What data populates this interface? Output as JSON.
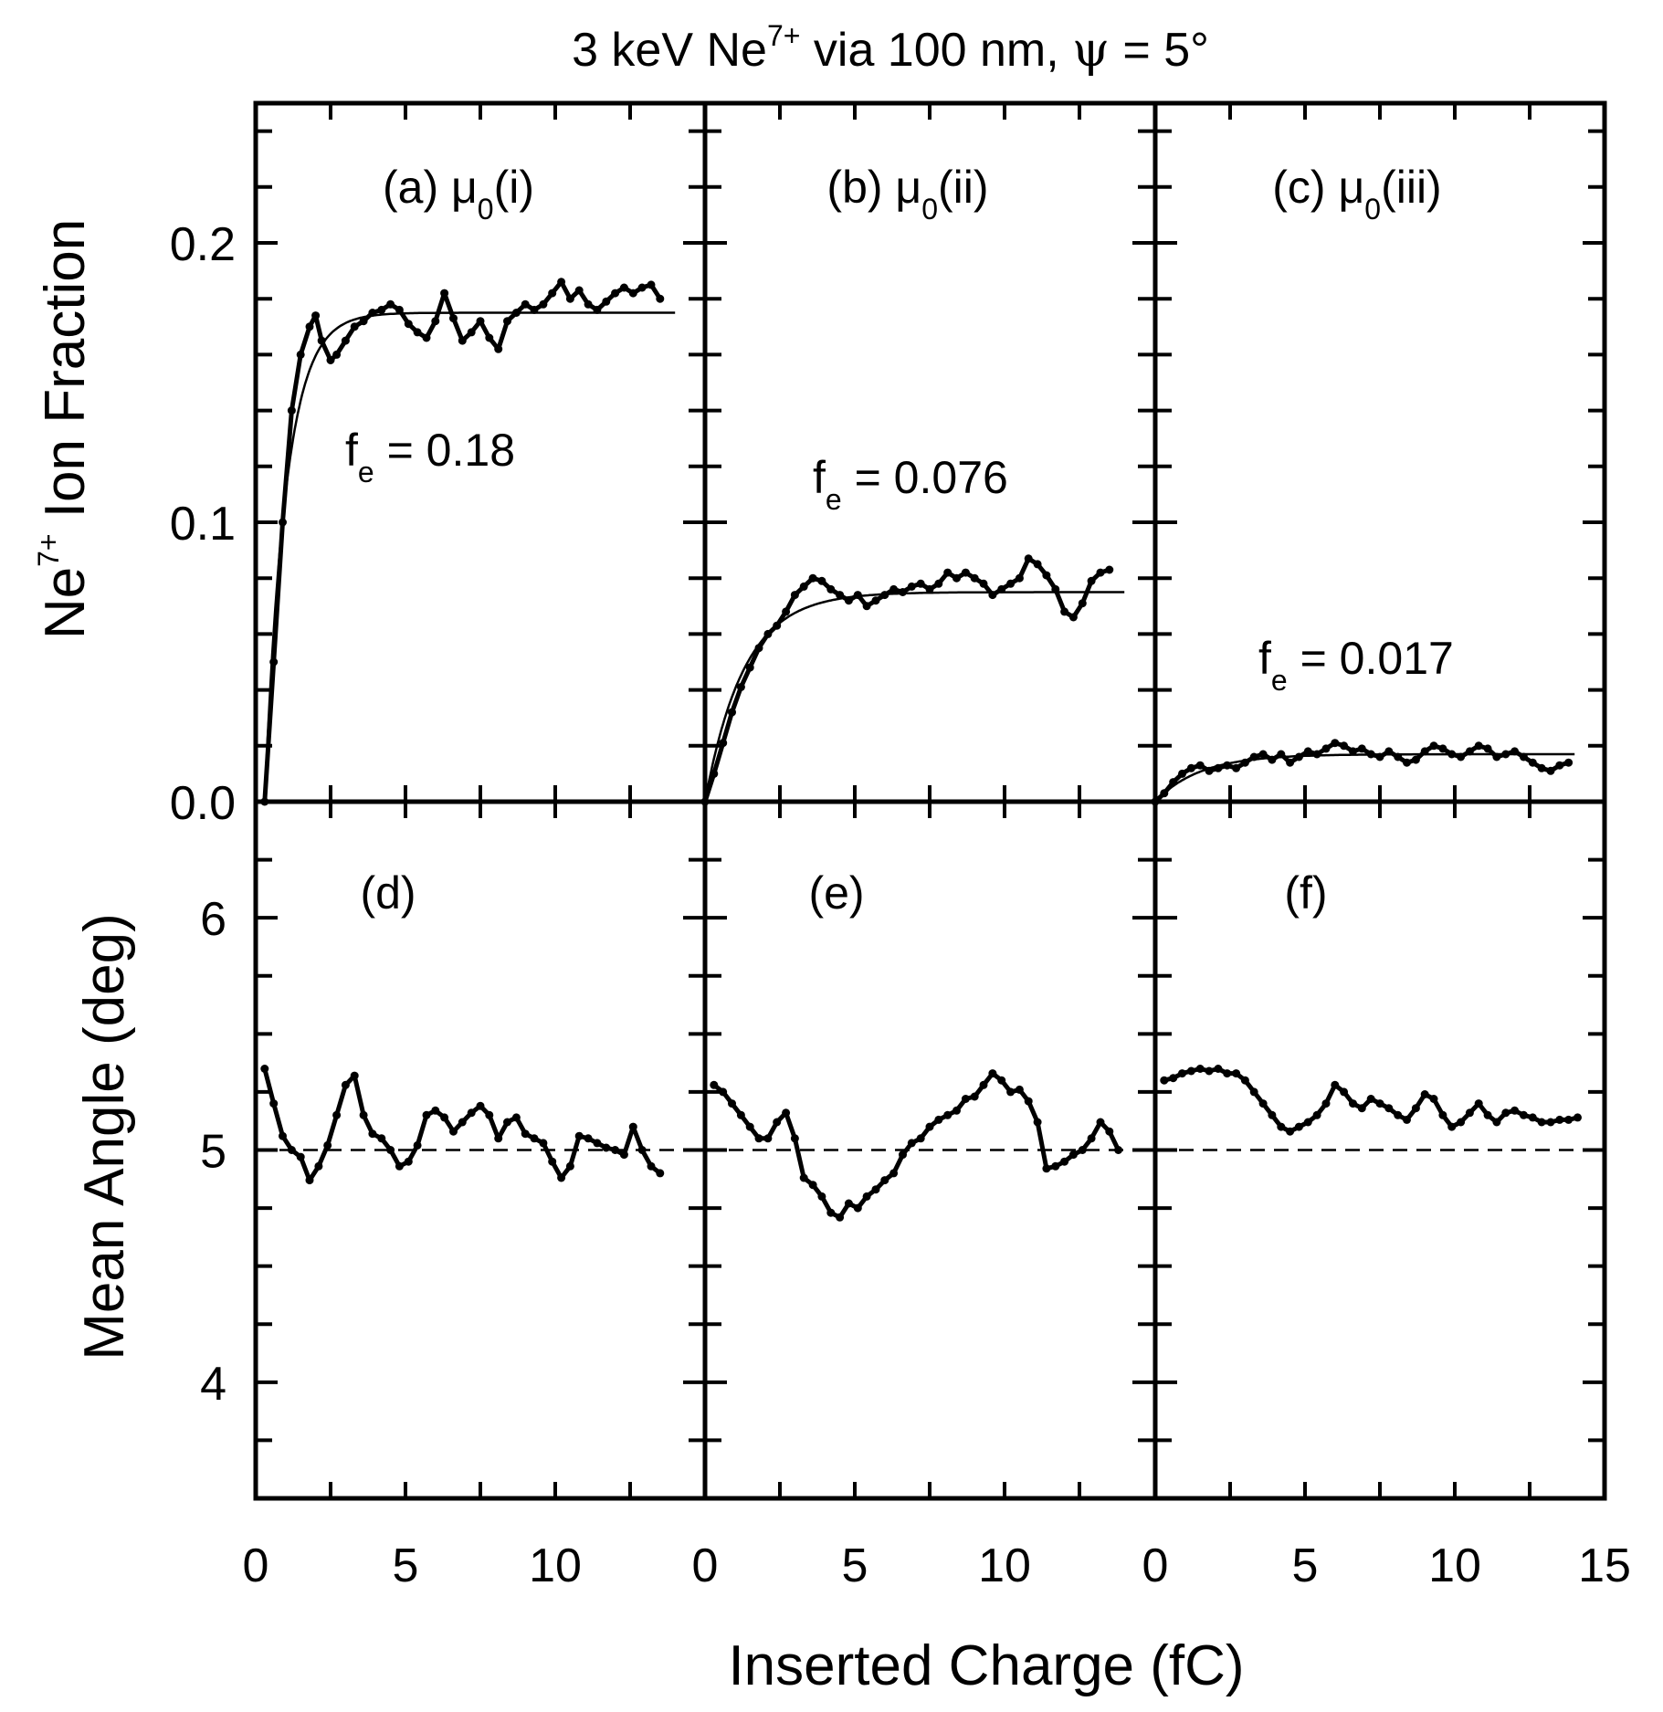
{
  "chart_data": {
    "type": "line",
    "title": {
      "prefix": "3 keV Ne",
      "sup": "7+",
      "middle": " via 100 nm, ",
      "psi": "ψ",
      "suffix": " = 5°"
    },
    "xlabel": "Inserted Charge (fC)",
    "ylabel_top": {
      "prefix": "Ne",
      "sup": "7+",
      "suffix": " Ion Fraction"
    },
    "ylabel_bottom": "Mean Angle (deg)",
    "xlim": [
      0,
      15
    ],
    "x_ticks": [
      "0",
      "5",
      "10",
      "15"
    ],
    "top_ylim": [
      0.0,
      0.25
    ],
    "top_y_ticks": [
      "0.0",
      "0.1",
      "0.2"
    ],
    "bottom_ylim": [
      3.5,
      6.5
    ],
    "bottom_y_ticks": [
      "4",
      "5",
      "6"
    ],
    "reference_angle": 5,
    "panels": [
      {
        "label": "(a) μ",
        "label_sub": "0",
        "label_tail": "(i)",
        "fe_label": "f",
        "fe_sub": "e",
        "fe_value": " = 0.18",
        "fraction": [
          [
            0.3,
            0.0
          ],
          [
            0.6,
            0.05
          ],
          [
            0.9,
            0.1
          ],
          [
            1.2,
            0.14
          ],
          [
            1.5,
            0.16
          ],
          [
            1.8,
            0.17
          ],
          [
            2.0,
            0.174
          ],
          [
            2.2,
            0.165
          ],
          [
            2.5,
            0.158
          ],
          [
            2.7,
            0.16
          ],
          [
            3.0,
            0.165
          ],
          [
            3.3,
            0.17
          ],
          [
            3.6,
            0.172
          ],
          [
            3.9,
            0.175
          ],
          [
            4.2,
            0.176
          ],
          [
            4.5,
            0.178
          ],
          [
            4.8,
            0.176
          ],
          [
            5.1,
            0.171
          ],
          [
            5.4,
            0.168
          ],
          [
            5.7,
            0.166
          ],
          [
            6.0,
            0.172
          ],
          [
            6.3,
            0.182
          ],
          [
            6.6,
            0.173
          ],
          [
            6.9,
            0.165
          ],
          [
            7.2,
            0.168
          ],
          [
            7.5,
            0.172
          ],
          [
            7.8,
            0.166
          ],
          [
            8.1,
            0.162
          ],
          [
            8.4,
            0.172
          ],
          [
            8.7,
            0.175
          ],
          [
            9.0,
            0.178
          ],
          [
            9.3,
            0.176
          ],
          [
            9.6,
            0.178
          ],
          [
            9.9,
            0.182
          ],
          [
            10.2,
            0.186
          ],
          [
            10.5,
            0.18
          ],
          [
            10.8,
            0.183
          ],
          [
            11.1,
            0.178
          ],
          [
            11.4,
            0.176
          ],
          [
            11.7,
            0.179
          ],
          [
            12.0,
            0.182
          ],
          [
            12.3,
            0.184
          ],
          [
            12.6,
            0.182
          ],
          [
            12.9,
            0.184
          ],
          [
            13.2,
            0.185
          ],
          [
            13.5,
            0.18
          ]
        ],
        "fit": {
          "fe": 0.18,
          "plateau": 0.175,
          "x0": 0.3,
          "tau": 0.7,
          "x_end": 14.0
        },
        "angle": [
          [
            0.3,
            5.35
          ],
          [
            0.6,
            5.2
          ],
          [
            0.9,
            5.06
          ],
          [
            1.2,
            5.0
          ],
          [
            1.5,
            4.97
          ],
          [
            1.8,
            4.87
          ],
          [
            2.1,
            4.93
          ],
          [
            2.4,
            5.02
          ],
          [
            2.7,
            5.15
          ],
          [
            3.0,
            5.28
          ],
          [
            3.3,
            5.32
          ],
          [
            3.6,
            5.15
          ],
          [
            3.9,
            5.07
          ],
          [
            4.2,
            5.05
          ],
          [
            4.5,
            5.0
          ],
          [
            4.8,
            4.93
          ],
          [
            5.1,
            4.95
          ],
          [
            5.4,
            5.02
          ],
          [
            5.7,
            5.15
          ],
          [
            6.0,
            5.17
          ],
          [
            6.3,
            5.14
          ],
          [
            6.6,
            5.08
          ],
          [
            6.9,
            5.12
          ],
          [
            7.2,
            5.16
          ],
          [
            7.5,
            5.19
          ],
          [
            7.8,
            5.15
          ],
          [
            8.1,
            5.05
          ],
          [
            8.4,
            5.12
          ],
          [
            8.7,
            5.14
          ],
          [
            9.0,
            5.07
          ],
          [
            9.3,
            5.05
          ],
          [
            9.6,
            5.03
          ],
          [
            9.9,
            4.95
          ],
          [
            10.2,
            4.88
          ],
          [
            10.5,
            4.93
          ],
          [
            10.8,
            5.06
          ],
          [
            11.1,
            5.05
          ],
          [
            11.4,
            5.03
          ],
          [
            11.7,
            5.01
          ],
          [
            12.0,
            5.0
          ],
          [
            12.3,
            4.98
          ],
          [
            12.6,
            5.1
          ],
          [
            12.9,
            5.0
          ],
          [
            13.2,
            4.93
          ],
          [
            13.5,
            4.9
          ]
        ]
      },
      {
        "label": "(b) μ",
        "label_sub": "0",
        "label_tail": "(ii)",
        "fe_label": "f",
        "fe_sub": "e",
        "fe_value": " = 0.076",
        "fraction": [
          [
            0.0,
            0.0
          ],
          [
            0.3,
            0.01
          ],
          [
            0.6,
            0.021
          ],
          [
            0.9,
            0.032
          ],
          [
            1.2,
            0.041
          ],
          [
            1.5,
            0.048
          ],
          [
            1.8,
            0.055
          ],
          [
            2.1,
            0.06
          ],
          [
            2.4,
            0.063
          ],
          [
            2.7,
            0.068
          ],
          [
            3.0,
            0.074
          ],
          [
            3.3,
            0.077
          ],
          [
            3.6,
            0.08
          ],
          [
            3.9,
            0.079
          ],
          [
            4.2,
            0.076
          ],
          [
            4.5,
            0.074
          ],
          [
            4.8,
            0.072
          ],
          [
            5.1,
            0.074
          ],
          [
            5.4,
            0.07
          ],
          [
            5.7,
            0.072
          ],
          [
            6.0,
            0.074
          ],
          [
            6.3,
            0.076
          ],
          [
            6.6,
            0.075
          ],
          [
            6.9,
            0.077
          ],
          [
            7.2,
            0.078
          ],
          [
            7.5,
            0.076
          ],
          [
            7.8,
            0.078
          ],
          [
            8.1,
            0.082
          ],
          [
            8.4,
            0.08
          ],
          [
            8.7,
            0.082
          ],
          [
            9.0,
            0.08
          ],
          [
            9.3,
            0.078
          ],
          [
            9.6,
            0.074
          ],
          [
            9.9,
            0.076
          ],
          [
            10.2,
            0.078
          ],
          [
            10.5,
            0.08
          ],
          [
            10.8,
            0.087
          ],
          [
            11.1,
            0.085
          ],
          [
            11.4,
            0.081
          ],
          [
            11.7,
            0.076
          ],
          [
            12.0,
            0.068
          ],
          [
            12.3,
            0.066
          ],
          [
            12.6,
            0.071
          ],
          [
            12.9,
            0.079
          ],
          [
            13.2,
            0.082
          ],
          [
            13.5,
            0.083
          ]
        ],
        "fit": {
          "fe": 0.076,
          "plateau": 0.075,
          "x0": 0.0,
          "tau": 1.3,
          "x_end": 14.0
        },
        "angle": [
          [
            0.3,
            5.28
          ],
          [
            0.6,
            5.25
          ],
          [
            0.9,
            5.2
          ],
          [
            1.2,
            5.15
          ],
          [
            1.5,
            5.1
          ],
          [
            1.8,
            5.05
          ],
          [
            2.1,
            5.05
          ],
          [
            2.4,
            5.12
          ],
          [
            2.7,
            5.16
          ],
          [
            3.0,
            5.05
          ],
          [
            3.3,
            4.88
          ],
          [
            3.6,
            4.85
          ],
          [
            3.9,
            4.8
          ],
          [
            4.2,
            4.73
          ],
          [
            4.5,
            4.71
          ],
          [
            4.8,
            4.77
          ],
          [
            5.1,
            4.75
          ],
          [
            5.4,
            4.8
          ],
          [
            5.7,
            4.83
          ],
          [
            6.0,
            4.87
          ],
          [
            6.3,
            4.9
          ],
          [
            6.6,
            4.98
          ],
          [
            6.9,
            5.03
          ],
          [
            7.2,
            5.05
          ],
          [
            7.5,
            5.1
          ],
          [
            7.8,
            5.13
          ],
          [
            8.1,
            5.15
          ],
          [
            8.4,
            5.17
          ],
          [
            8.7,
            5.22
          ],
          [
            9.0,
            5.23
          ],
          [
            9.3,
            5.28
          ],
          [
            9.6,
            5.33
          ],
          [
            9.9,
            5.3
          ],
          [
            10.2,
            5.25
          ],
          [
            10.5,
            5.26
          ],
          [
            10.8,
            5.21
          ],
          [
            11.1,
            5.12
          ],
          [
            11.4,
            4.92
          ],
          [
            11.7,
            4.93
          ],
          [
            12.0,
            4.95
          ],
          [
            12.3,
            4.98
          ],
          [
            12.6,
            5.0
          ],
          [
            12.9,
            5.05
          ],
          [
            13.2,
            5.12
          ],
          [
            13.5,
            5.08
          ],
          [
            13.8,
            5.0
          ]
        ]
      },
      {
        "label": "(c) μ",
        "label_sub": "0",
        "label_tail": "(iii)",
        "fe_label": "f",
        "fe_sub": "e",
        "fe_value": " = 0.017",
        "fraction": [
          [
            0.0,
            0.0
          ],
          [
            0.3,
            0.003
          ],
          [
            0.6,
            0.007
          ],
          [
            0.9,
            0.01
          ],
          [
            1.2,
            0.012
          ],
          [
            1.5,
            0.013
          ],
          [
            1.8,
            0.011
          ],
          [
            2.1,
            0.012
          ],
          [
            2.4,
            0.013
          ],
          [
            2.7,
            0.012
          ],
          [
            3.0,
            0.014
          ],
          [
            3.3,
            0.016
          ],
          [
            3.6,
            0.017
          ],
          [
            3.9,
            0.015
          ],
          [
            4.2,
            0.017
          ],
          [
            4.5,
            0.014
          ],
          [
            4.8,
            0.016
          ],
          [
            5.1,
            0.018
          ],
          [
            5.4,
            0.017
          ],
          [
            5.7,
            0.019
          ],
          [
            6.0,
            0.021
          ],
          [
            6.3,
            0.02
          ],
          [
            6.6,
            0.018
          ],
          [
            6.9,
            0.019
          ],
          [
            7.2,
            0.017
          ],
          [
            7.5,
            0.016
          ],
          [
            7.8,
            0.018
          ],
          [
            8.1,
            0.016
          ],
          [
            8.4,
            0.014
          ],
          [
            8.7,
            0.015
          ],
          [
            9.0,
            0.018
          ],
          [
            9.3,
            0.02
          ],
          [
            9.6,
            0.019
          ],
          [
            9.9,
            0.017
          ],
          [
            10.2,
            0.016
          ],
          [
            10.5,
            0.018
          ],
          [
            10.8,
            0.02
          ],
          [
            11.1,
            0.019
          ],
          [
            11.4,
            0.016
          ],
          [
            11.7,
            0.017
          ],
          [
            12.0,
            0.018
          ],
          [
            12.3,
            0.016
          ],
          [
            12.6,
            0.014
          ],
          [
            12.9,
            0.012
          ],
          [
            13.2,
            0.011
          ],
          [
            13.5,
            0.013
          ],
          [
            13.8,
            0.014
          ]
        ],
        "fit": {
          "fe": 0.017,
          "plateau": 0.017,
          "x0": 0.0,
          "tau": 1.5,
          "x_end": 14.0
        },
        "angle": [
          [
            0.3,
            5.3
          ],
          [
            0.6,
            5.31
          ],
          [
            0.9,
            5.33
          ],
          [
            1.2,
            5.34
          ],
          [
            1.5,
            5.35
          ],
          [
            1.8,
            5.34
          ],
          [
            2.1,
            5.35
          ],
          [
            2.4,
            5.33
          ],
          [
            2.7,
            5.33
          ],
          [
            3.0,
            5.3
          ],
          [
            3.3,
            5.25
          ],
          [
            3.6,
            5.2
          ],
          [
            3.9,
            5.15
          ],
          [
            4.2,
            5.1
          ],
          [
            4.5,
            5.08
          ],
          [
            4.8,
            5.1
          ],
          [
            5.1,
            5.12
          ],
          [
            5.4,
            5.15
          ],
          [
            5.7,
            5.2
          ],
          [
            6.0,
            5.28
          ],
          [
            6.3,
            5.25
          ],
          [
            6.6,
            5.2
          ],
          [
            6.9,
            5.18
          ],
          [
            7.2,
            5.22
          ],
          [
            7.5,
            5.2
          ],
          [
            7.8,
            5.18
          ],
          [
            8.1,
            5.15
          ],
          [
            8.4,
            5.13
          ],
          [
            8.7,
            5.18
          ],
          [
            9.0,
            5.24
          ],
          [
            9.3,
            5.22
          ],
          [
            9.6,
            5.15
          ],
          [
            9.9,
            5.1
          ],
          [
            10.2,
            5.12
          ],
          [
            10.5,
            5.16
          ],
          [
            10.8,
            5.2
          ],
          [
            11.1,
            5.15
          ],
          [
            11.4,
            5.12
          ],
          [
            11.7,
            5.16
          ],
          [
            12.0,
            5.17
          ],
          [
            12.3,
            5.15
          ],
          [
            12.6,
            5.14
          ],
          [
            12.9,
            5.12
          ],
          [
            13.2,
            5.12
          ],
          [
            13.5,
            5.13
          ],
          [
            13.8,
            5.13
          ],
          [
            14.1,
            5.14
          ]
        ]
      },
      {
        "label": "(d)"
      },
      {
        "label": "(e)"
      },
      {
        "label": "(f)"
      }
    ]
  }
}
